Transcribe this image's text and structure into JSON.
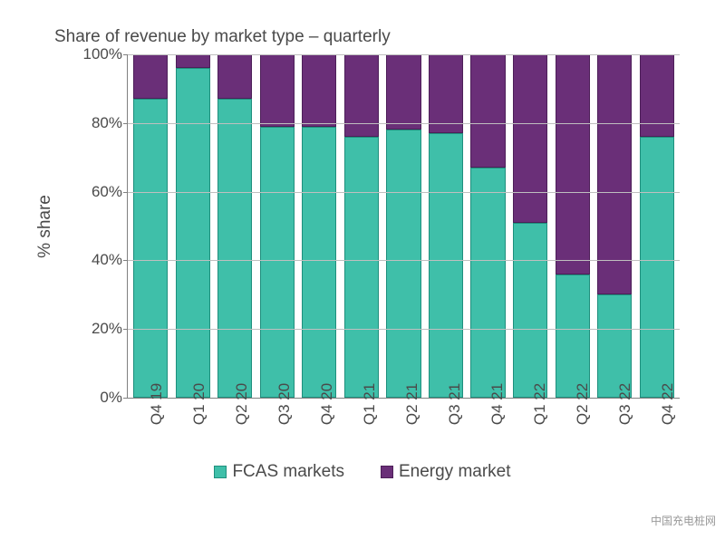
{
  "chart": {
    "type": "stacked-bar",
    "title": "Share of revenue by market type – quarterly",
    "ylabel": "% share",
    "ylim": [
      0,
      100
    ],
    "yticks": [
      0,
      20,
      40,
      60,
      80,
      100
    ],
    "ytick_suffix": "%",
    "categories": [
      "Q4 19",
      "Q1 20",
      "Q2 20",
      "Q3 20",
      "Q4 20",
      "Q1 21",
      "Q2 21",
      "Q3 21",
      "Q4 21",
      "Q1 22",
      "Q2 22",
      "Q3 22",
      "Q4 22"
    ],
    "series": [
      {
        "name": "FCAS markets",
        "color": "#3fbfa9",
        "border": "#1f8f7d",
        "values": [
          87,
          96,
          87,
          79,
          79,
          76,
          78,
          77,
          67,
          51,
          36,
          30,
          76
        ]
      },
      {
        "name": "Energy market",
        "color": "#6a2f78",
        "border": "#4d1f59",
        "values": [
          13,
          4,
          13,
          21,
          21,
          24,
          22,
          23,
          33,
          49,
          64,
          70,
          24
        ]
      }
    ],
    "grid_color": "#bfbfbf",
    "axis_color": "#808080",
    "background_color": "#ffffff",
    "title_fontsize": 19,
    "tick_fontsize": 17,
    "bar_width_ratio": 0.82
  },
  "watermark": "中国充电桩网"
}
